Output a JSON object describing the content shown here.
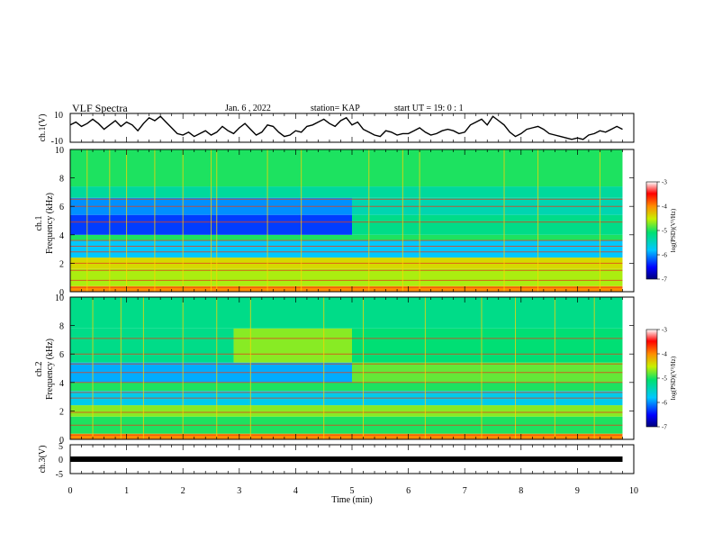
{
  "header": {
    "title": "VLF Spectra",
    "date": "Jan. 6 , 2022",
    "station": "station= KAP",
    "start": "start UT =  19: 0 : 1"
  },
  "chart_data": [
    {
      "type": "line",
      "name": "panel-ch1-voltage",
      "ylabel": "ch.1(V)",
      "ylim": [
        -10,
        10
      ],
      "yticks": [
        "10",
        "-10"
      ],
      "xlim": [
        0,
        10
      ],
      "color": "#000000",
      "x": [
        0,
        0.1,
        0.2,
        0.3,
        0.4,
        0.5,
        0.6,
        0.7,
        0.8,
        0.9,
        1.0,
        1.1,
        1.2,
        1.3,
        1.4,
        1.5,
        1.6,
        1.7,
        1.8,
        1.9,
        2.0,
        2.1,
        2.2,
        2.3,
        2.4,
        2.5,
        2.6,
        2.7,
        2.8,
        2.9,
        3.0,
        3.1,
        3.2,
        3.3,
        3.4,
        3.5,
        3.6,
        3.7,
        3.8,
        3.9,
        4.0,
        4.1,
        4.2,
        4.3,
        4.4,
        4.5,
        4.6,
        4.7,
        4.8,
        4.9,
        5.0,
        5.1,
        5.2,
        5.3,
        5.4,
        5.5,
        5.6,
        5.7,
        5.8,
        5.9,
        6.0,
        6.1,
        6.2,
        6.3,
        6.4,
        6.5,
        6.6,
        6.7,
        6.8,
        6.9,
        7.0,
        7.1,
        7.2,
        7.3,
        7.4,
        7.5,
        7.6,
        7.7,
        7.8,
        7.9,
        8.0,
        8.1,
        8.2,
        8.3,
        8.4,
        8.5,
        8.6,
        8.7,
        8.8,
        8.9,
        9.0,
        9.1,
        9.2,
        9.3,
        9.4,
        9.5,
        9.6,
        9.7,
        9.8
      ],
      "values": [
        2,
        4,
        1,
        3,
        6,
        3,
        -1,
        2,
        5,
        1,
        4,
        2,
        -2,
        3,
        7,
        5,
        8,
        4,
        0,
        -4,
        -5,
        -3,
        -6,
        -4,
        -2,
        -5,
        -3,
        1,
        -2,
        -4,
        0,
        3,
        -1,
        -5,
        -3,
        2,
        1,
        -3,
        -6,
        -5,
        -2,
        -3,
        1,
        2,
        4,
        6,
        3,
        1,
        5,
        7,
        2,
        4,
        -1,
        -3,
        -5,
        -6,
        -2,
        -3,
        -5,
        -4,
        -4,
        -2,
        0,
        -3,
        -5,
        -4,
        -2,
        -1,
        -2,
        -4,
        -3,
        2,
        4,
        6,
        2,
        8,
        5,
        2,
        -3,
        -6,
        -4,
        -1,
        0,
        1,
        -1,
        -4,
        -5,
        -6,
        -7,
        -8,
        -7,
        -8,
        -5,
        -4,
        -2,
        -3,
        -1,
        1,
        -1
      ]
    },
    {
      "type": "heatmap",
      "name": "panel-ch1-spectrogram",
      "ylabel": "ch.1\nFrequency (kHz)",
      "ylabel_line1": "ch.1",
      "ylabel_line2": "Frequency (kHz)",
      "ylim": [
        0,
        10
      ],
      "yticks": [
        "0",
        "2",
        "4",
        "6",
        "8",
        "10"
      ],
      "xlim": [
        0,
        10
      ],
      "colorscale": {
        "label": "log(PSD)(V²/Hz)",
        "range": [
          -7,
          -3
        ],
        "ticks": [
          "-3",
          "-4",
          "-5",
          "-6",
          "-7"
        ]
      },
      "bands": [
        {
          "f": [
            0.0,
            0.4
          ],
          "t0": 0,
          "t1": 9.8,
          "level": -4.0
        },
        {
          "f": [
            0.4,
            1.6
          ],
          "t0": 0,
          "t1": 9.8,
          "level": -4.6
        },
        {
          "f": [
            1.6,
            2.4
          ],
          "t0": 0,
          "t1": 9.8,
          "level": -4.4
        },
        {
          "f": [
            2.4,
            3.6
          ],
          "t0": 0,
          "t1": 9.8,
          "level": -5.8
        },
        {
          "f": [
            3.6,
            4.0
          ],
          "t0": 0,
          "t1": 9.8,
          "level": -5.0
        },
        {
          "f": [
            4.0,
            5.4
          ],
          "t0": 0,
          "t1": 5.0,
          "level": -6.3
        },
        {
          "f": [
            4.0,
            5.4
          ],
          "t0": 5.0,
          "t1": 9.8,
          "level": -5.2
        },
        {
          "f": [
            5.4,
            6.6
          ],
          "t0": 0,
          "t1": 5.0,
          "level": -6.0
        },
        {
          "f": [
            5.4,
            6.6
          ],
          "t0": 5.0,
          "t1": 9.8,
          "level": -5.4
        },
        {
          "f": [
            6.6,
            7.4
          ],
          "t0": 0,
          "t1": 9.8,
          "level": -5.3
        },
        {
          "f": [
            7.4,
            10.0
          ],
          "t0": 0,
          "t1": 9.8,
          "level": -5.0
        }
      ],
      "lines_khz": [
        0.3,
        0.8,
        1.5,
        2.0,
        2.8,
        3.2,
        3.6,
        4.9,
        6.0,
        6.5
      ],
      "bursts_min": [
        0.3,
        0.7,
        1.0,
        1.5,
        2.0,
        2.5,
        2.6,
        3.5,
        4.1,
        5.3,
        5.9,
        6.2,
        7.7,
        8.3,
        9.4
      ]
    },
    {
      "type": "heatmap",
      "name": "panel-ch2-spectrogram",
      "ylabel": "ch.2\nFrequency (kHz)",
      "ylabel_line1": "ch.2",
      "ylabel_line2": "Frequency (kHz)",
      "ylim": [
        0,
        10
      ],
      "yticks": [
        "0",
        "2",
        "4",
        "6",
        "8",
        "10"
      ],
      "xlim": [
        0,
        10
      ],
      "colorscale": {
        "label": "log(PSD)(V²/Hz)",
        "range": [
          -7,
          -3
        ],
        "ticks": [
          "-3",
          "-4",
          "-5",
          "-6",
          "-7"
        ]
      },
      "bands": [
        {
          "f": [
            0.0,
            0.4
          ],
          "t0": 0,
          "t1": 9.8,
          "level": -4.0
        },
        {
          "f": [
            0.4,
            1.6
          ],
          "t0": 0,
          "t1": 9.8,
          "level": -5.0
        },
        {
          "f": [
            1.6,
            2.4
          ],
          "t0": 0,
          "t1": 9.8,
          "level": -4.7
        },
        {
          "f": [
            2.4,
            3.4
          ],
          "t0": 0,
          "t1": 9.8,
          "level": -5.7
        },
        {
          "f": [
            3.4,
            4.0
          ],
          "t0": 0,
          "t1": 9.8,
          "level": -5.0
        },
        {
          "f": [
            4.0,
            5.4
          ],
          "t0": 0,
          "t1": 5.0,
          "level": -5.9
        },
        {
          "f": [
            4.0,
            5.4
          ],
          "t0": 5.0,
          "t1": 9.8,
          "level": -4.8
        },
        {
          "f": [
            5.4,
            7.8
          ],
          "t0": 0,
          "t1": 2.9,
          "level": -5.2
        },
        {
          "f": [
            5.4,
            7.8
          ],
          "t0": 2.9,
          "t1": 5.0,
          "level": -4.7
        },
        {
          "f": [
            5.4,
            7.8
          ],
          "t0": 5.0,
          "t1": 9.8,
          "level": -5.1
        },
        {
          "f": [
            7.8,
            10.0
          ],
          "t0": 0,
          "t1": 9.8,
          "level": -5.2
        }
      ],
      "lines_khz": [
        0.3,
        1.0,
        1.9,
        2.9,
        3.3,
        4.0,
        4.7,
        5.3,
        6.0,
        7.1
      ],
      "bursts_min": [
        0.4,
        0.9,
        1.3,
        2.0,
        2.6,
        3.2,
        4.5,
        5.2,
        6.3,
        7.3,
        7.9,
        8.6,
        9.3
      ]
    },
    {
      "type": "line",
      "name": "panel-ch3-voltage",
      "ylabel": "ch.3(V)",
      "ylim": [
        -5,
        5
      ],
      "yticks": [
        "5",
        "0",
        "-5"
      ],
      "xlim": [
        0,
        10
      ],
      "xticks": [
        "0",
        "1",
        "2",
        "3",
        "4",
        "5",
        "6",
        "7",
        "8",
        "9",
        "10"
      ],
      "xlabel": "Time (min)",
      "color": "#000000",
      "x": [
        0,
        9.8
      ],
      "values": [
        0,
        0
      ]
    }
  ]
}
